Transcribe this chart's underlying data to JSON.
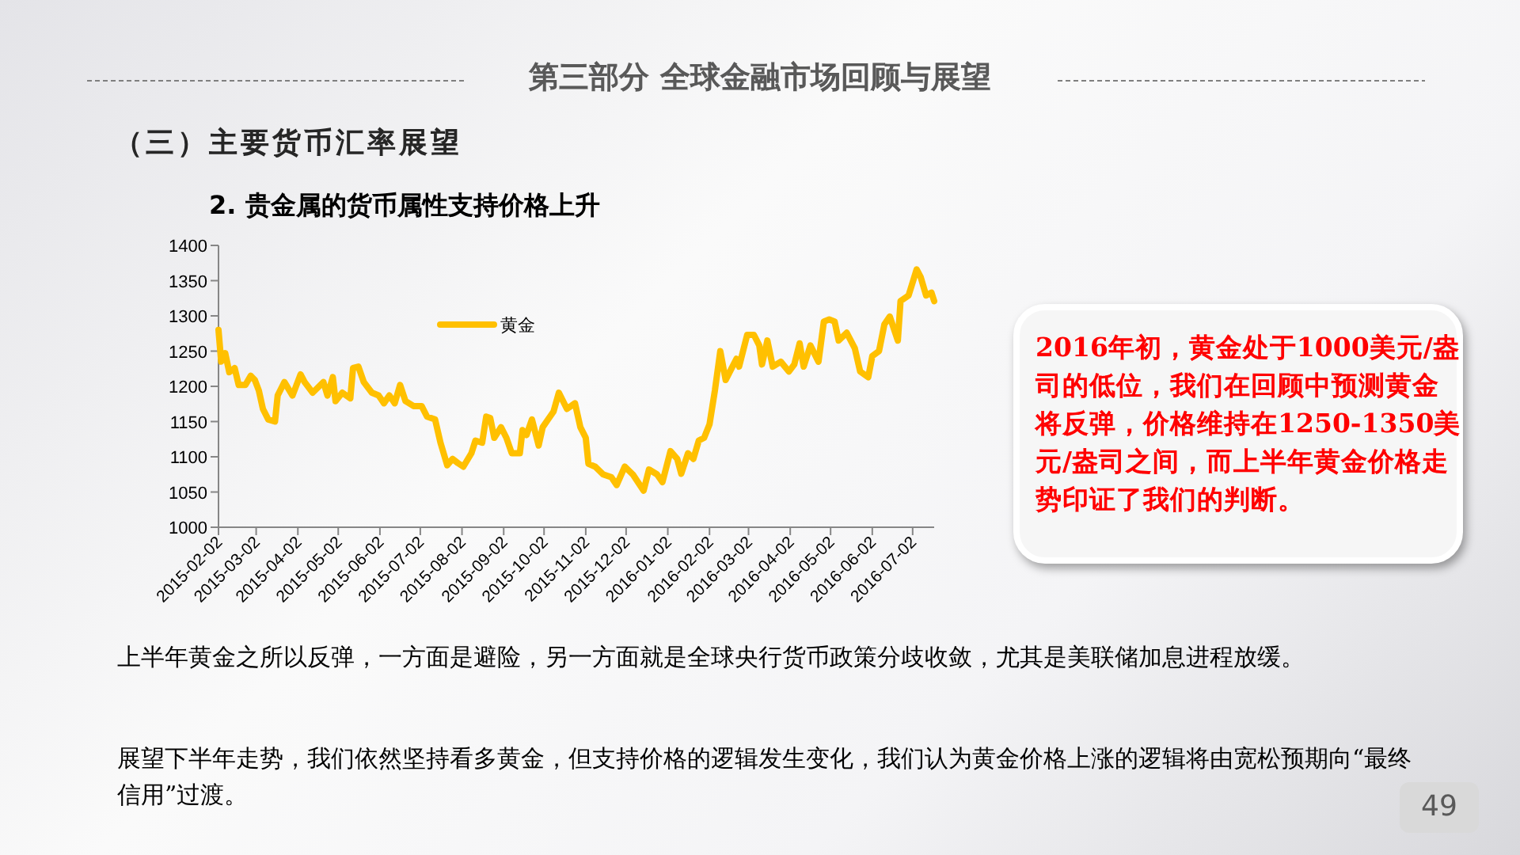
{
  "chart_data": {
    "type": "line",
    "title": "2.  贵金属的货币属性支持价格上升",
    "annotations": [
      "第三部分  全球金融市场回顾与展望",
      "（三）主要货币汇率展望",
      "2016年初，黄金处于1000美元/盎司的低位，我们在回顾中预测黄金将反弹，价格维持在1250-1350美元/盎司之间，而上半年黄金价格走势印证了我们的判断。",
      "上半年黄金之所以反弹，一方面是避险，另一方面就是全球央行货币政策分歧收敛，尤其是美联储加息进程放缓。",
      "展望下半年走势，我们依然坚持看多黄金，但支持价格的逻辑发生变化，我们认为黄金价格上涨的逻辑将由宽松预期向“最终信用”过渡。",
      "49"
    ],
    "x": [
      "2015-02-02",
      "2015-02-04",
      "2015-02-07",
      "2015-02-10",
      "2015-02-14",
      "2015-02-17",
      "2015-02-22",
      "2015-02-26",
      "2015-03-01",
      "2015-03-04",
      "2015-03-07",
      "2015-03-11",
      "2015-03-16",
      "2015-03-18",
      "2015-03-23",
      "2015-03-29",
      "2015-04-04",
      "2015-04-07",
      "2015-04-13",
      "2015-04-21",
      "2015-04-24",
      "2015-04-28",
      "2015-04-30",
      "2015-05-05",
      "2015-05-11",
      "2015-05-13",
      "2015-05-17",
      "2015-05-21",
      "2015-05-27",
      "2015-06-01",
      "2015-06-05",
      "2015-06-09",
      "2015-06-13",
      "2015-06-17",
      "2015-06-21",
      "2015-06-27",
      "2015-07-03",
      "2015-07-07",
      "2015-07-13",
      "2015-07-17",
      "2015-07-22",
      "2015-07-26",
      "2015-07-30",
      "2015-08-03",
      "2015-08-09",
      "2015-08-12",
      "2015-08-17",
      "2015-08-20",
      "2015-08-23",
      "2015-08-26",
      "2015-08-31",
      "2015-09-04",
      "2015-09-08",
      "2015-09-14",
      "2015-09-16",
      "2015-09-19",
      "2015-09-23",
      "2015-09-28",
      "2015-10-01",
      "2015-10-05",
      "2015-10-09",
      "2015-10-13",
      "2015-10-19",
      "2015-10-25",
      "2015-10-29",
      "2015-11-02",
      "2015-11-04",
      "2015-11-09",
      "2015-11-15",
      "2015-11-21",
      "2015-11-25",
      "2015-12-01",
      "2015-12-07",
      "2015-12-15",
      "2015-12-19",
      "2015-12-25",
      "2015-12-29",
      "2016-01-04",
      "2016-01-09",
      "2016-01-12",
      "2016-01-17",
      "2016-01-21",
      "2016-01-25",
      "2016-01-29",
      "2016-02-02",
      "2016-02-06",
      "2016-02-10",
      "2016-02-14",
      "2016-02-18",
      "2016-02-22",
      "2016-02-24",
      "2016-03-01",
      "2016-03-06",
      "2016-03-10",
      "2016-03-12",
      "2016-03-16",
      "2016-03-20",
      "2016-03-26",
      "2016-04-01",
      "2016-04-05",
      "2016-04-09",
      "2016-04-12",
      "2016-04-17",
      "2016-04-23",
      "2016-04-27",
      "2016-05-01",
      "2016-05-05",
      "2016-05-08",
      "2016-05-14",
      "2016-05-20",
      "2016-05-24",
      "2016-05-30",
      "2016-06-02",
      "2016-06-07",
      "2016-06-11",
      "2016-06-15",
      "2016-06-21",
      "2016-06-23",
      "2016-06-29",
      "2016-07-05",
      "2016-07-08",
      "2016-07-12",
      "2016-07-16",
      "2016-07-18"
    ],
    "series": [
      {
        "name": "黄金",
        "color": "#ffc000",
        "values": [
          1280,
          1235,
          1247,
          1220,
          1226,
          1202,
          1202,
          1215,
          1209,
          1194,
          1168,
          1153,
          1150,
          1187,
          1206,
          1187,
          1217,
          1206,
          1191,
          1206,
          1187,
          1213,
          1179,
          1191,
          1183,
          1226,
          1228,
          1206,
          1191,
          1187,
          1176,
          1187,
          1176,
          1202,
          1179,
          1172,
          1172,
          1157,
          1153,
          1120,
          1088,
          1097,
          1091,
          1086,
          1105,
          1123,
          1120,
          1157,
          1155,
          1127,
          1142,
          1127,
          1105,
          1105,
          1138,
          1131,
          1153,
          1116,
          1142,
          1153,
          1164,
          1191,
          1168,
          1176,
          1142,
          1127,
          1090,
          1086,
          1075,
          1071,
          1060,
          1086,
          1075,
          1052,
          1082,
          1075,
          1064,
          1108,
          1097,
          1076,
          1105,
          1097,
          1123,
          1127,
          1146,
          1194,
          1250,
          1209,
          1224,
          1239,
          1228,
          1273,
          1273,
          1258,
          1231,
          1265,
          1228,
          1235,
          1221,
          1231,
          1261,
          1228,
          1258,
          1235,
          1292,
          1295,
          1292,
          1265,
          1276,
          1254,
          1221,
          1213,
          1243,
          1250,
          1288,
          1299,
          1265,
          1321,
          1329,
          1366,
          1355,
          1329,
          1333,
          1321
        ]
      }
    ],
    "xlim": [
      "2015-02-02",
      "2016-07-18"
    ],
    "xticks": [
      "2015-02-02",
      "2015-03-02",
      "2015-04-02",
      "2015-05-02",
      "2015-06-02",
      "2015-07-02",
      "2015-08-02",
      "2015-09-02",
      "2015-10-02",
      "2015-11-02",
      "2015-12-02",
      "2016-01-02",
      "2016-02-02",
      "2016-03-02",
      "2016-04-02",
      "2016-05-02",
      "2016-06-02",
      "2016-07-02"
    ],
    "ylim": [
      1000,
      1400
    ],
    "yticks": [
      1000,
      1050,
      1100,
      1150,
      1200,
      1250,
      1300,
      1350,
      1400
    ],
    "grid": false,
    "legend": "top left",
    "marker": "none",
    "line_style": "solid"
  }
}
